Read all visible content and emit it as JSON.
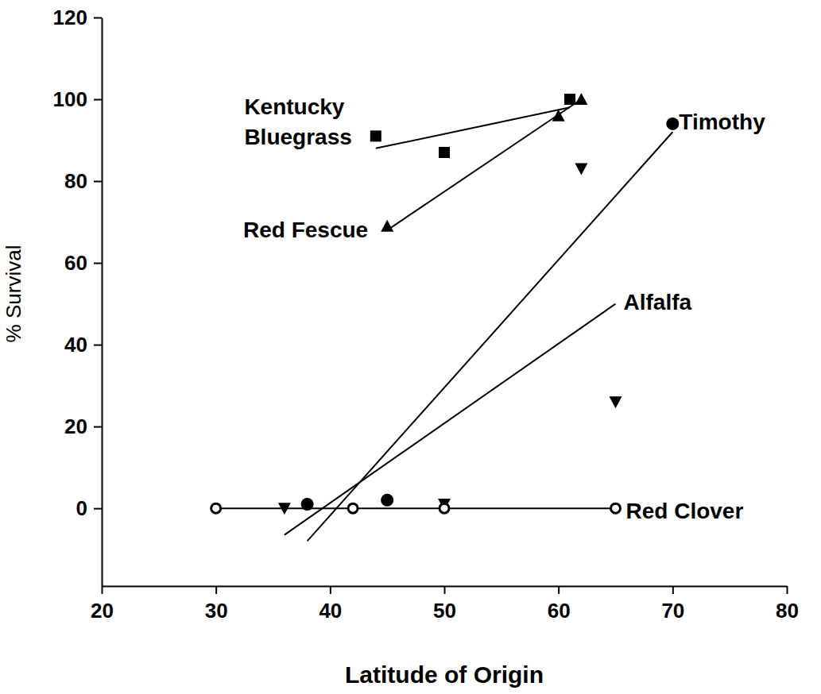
{
  "chart_data": {
    "type": "scatter",
    "x_label": "Latitude of Origin",
    "y_label": "% Survival",
    "xlim": [
      20,
      80
    ],
    "xticks": [
      20,
      30,
      40,
      50,
      60,
      70,
      80
    ],
    "ylim": [
      -19,
      120
    ],
    "yticks": [
      0,
      20,
      40,
      60,
      80,
      100,
      120
    ],
    "grid": false,
    "series": [
      {
        "name": "Kentucky Bluegrass",
        "color": "#000000",
        "marker": "square",
        "x": [
          44,
          50,
          61
        ],
        "values": [
          91,
          87,
          100
        ],
        "fit": {
          "x": [
            44,
            61
          ],
          "values": [
            88,
            98
          ]
        }
      },
      {
        "name": "Red Fescue",
        "color": "#000000",
        "marker": "triangle-up",
        "x": [
          45,
          60,
          62
        ],
        "values": [
          69,
          96,
          100
        ],
        "fit": {
          "x": [
            45,
            62
          ],
          "values": [
            68,
            100
          ]
        }
      },
      {
        "name": "Timothy",
        "color": "#000000",
        "marker": "circle",
        "x": [
          38,
          45,
          70
        ],
        "values": [
          1,
          2,
          94
        ],
        "fit": {
          "x": [
            38,
            70
          ],
          "values": [
            -8,
            92
          ]
        }
      },
      {
        "name": "Alfalfa",
        "color": "#000000",
        "marker": "triangle-down",
        "x": [
          36,
          50,
          62,
          65
        ],
        "values": [
          0,
          1,
          83,
          26
        ],
        "fit": {
          "x": [
            36,
            65
          ],
          "values": [
            -6.5,
            50
          ]
        }
      },
      {
        "name": "Red Clover",
        "color": "#000000",
        "marker": "ring",
        "x": [
          30,
          42,
          50,
          65
        ],
        "values": [
          0,
          0,
          0,
          0
        ],
        "fit": {
          "x": [
            30,
            65
          ],
          "values": [
            0,
            0
          ]
        }
      }
    ]
  }
}
